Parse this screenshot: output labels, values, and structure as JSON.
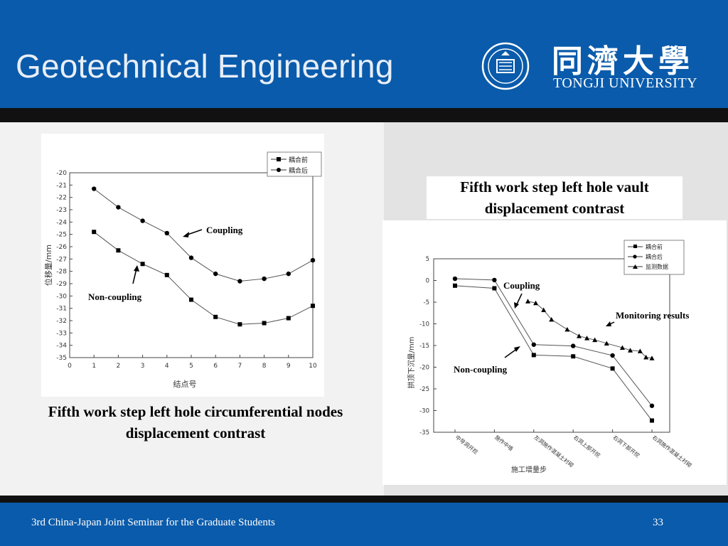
{
  "header": {
    "title": "Geotechnical Engineering",
    "university_cn": "同濟大學",
    "university_en": "TONGJI UNIVERSITY"
  },
  "footer": {
    "text": "3rd China-Japan Joint Seminar for the Graduate Students",
    "page_number": "33"
  },
  "captions": {
    "left": "Fifth work step left hole circumferential nodes displacement contrast",
    "right": "Fifth work step left hole vault displacement contrast"
  },
  "colors": {
    "header_bg": "#0a5bab",
    "band": "#111111"
  },
  "chart_data": [
    {
      "type": "line",
      "xlabel": "结点号",
      "ylabel": "位移量/mm",
      "xlim": [
        0,
        10
      ],
      "ylim": [
        -35,
        -20
      ],
      "x_ticks": [
        "0",
        "1",
        "2",
        "3",
        "4",
        "5",
        "6",
        "7",
        "8",
        "9",
        "10"
      ],
      "y_ticks": [
        "-20",
        "-21",
        "-22",
        "-23",
        "-24",
        "-25",
        "-26",
        "-27",
        "-28",
        "-29",
        "-30",
        "-31",
        "-32",
        "-33",
        "-34",
        "-35"
      ],
      "x": [
        1,
        2,
        3,
        4,
        5,
        6,
        7,
        8,
        9,
        10
      ],
      "series": [
        {
          "name": "耦合前",
          "marker": "square",
          "values": [
            -24.8,
            -26.3,
            -27.4,
            -28.3,
            -30.3,
            -31.7,
            -32.3,
            -32.2,
            -31.8,
            -30.8
          ]
        },
        {
          "name": "耦合后",
          "marker": "circle",
          "values": [
            -21.3,
            -22.8,
            -23.9,
            -24.9,
            -26.9,
            -28.2,
            -28.8,
            -28.6,
            -28.2,
            -27.1
          ]
        }
      ],
      "legend_position": "top-right",
      "annotations": [
        "Coupling",
        "Non-coupling"
      ]
    },
    {
      "type": "line",
      "xlabel": "施工增量步",
      "ylabel": "拱顶下沉量/mm",
      "ylim": [
        -35,
        5
      ],
      "y_ticks": [
        "5",
        "0",
        "-5",
        "-10",
        "-15",
        "-20",
        "-25",
        "-30",
        "-35"
      ],
      "categories": [
        "中导洞开挖",
        "施作中墙",
        "左洞施作混凝土衬砌",
        "右洞上部开挖",
        "右洞下部开挖",
        "右洞施作混凝土衬砌"
      ],
      "series": [
        {
          "name": "耦合前",
          "marker": "square",
          "values": [
            -1.2,
            -1.8,
            -17.2,
            -17.5,
            -20.3,
            -32.3
          ]
        },
        {
          "name": "耦合后",
          "marker": "circle",
          "values": [
            0.4,
            0.1,
            -14.8,
            -15.1,
            -17.3,
            -28.9
          ]
        },
        {
          "name": "监测数据",
          "marker": "triangle",
          "points": [
            [
              2.85,
              -4.8
            ],
            [
              3.05,
              -5.2
            ],
            [
              3.25,
              -6.8
            ],
            [
              3.45,
              -9.0
            ],
            [
              3.85,
              -11.3
            ],
            [
              4.15,
              -12.8
            ],
            [
              4.35,
              -13.3
            ],
            [
              4.55,
              -13.7
            ],
            [
              4.85,
              -14.5
            ],
            [
              5.25,
              -15.5
            ],
            [
              5.45,
              -16.1
            ],
            [
              5.7,
              -16.3
            ],
            [
              5.85,
              -17.7
            ],
            [
              6.0,
              -17.9
            ]
          ]
        }
      ],
      "legend_position": "top-right",
      "annotations": [
        "Coupling",
        "Monitoring results",
        "Non-coupling"
      ]
    }
  ]
}
